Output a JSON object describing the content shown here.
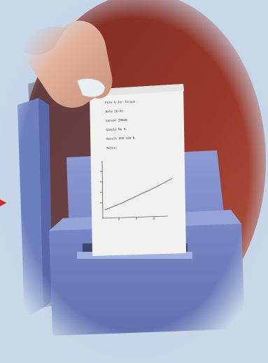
{
  "scene": {
    "subject": "printer-receipt-with-graph",
    "colors": {
      "background": "#c9d9ea",
      "wall_red": "#8a2e24",
      "printer_blue": "#7f8ec6",
      "paper": "#f0f1ef",
      "arrow": "#d6242b"
    }
  },
  "receipt": {
    "lines": [
      "Pole & Jar Torque",
      "Date   26-01-",
      "Sensor  IM000-",
      "Sample No   9",
      "Result  000 100 N",
      "Notes:  ",
      ""
    ]
  },
  "receipt_chart": {
    "type": "line",
    "xlabel": "",
    "ylabel": ""
  }
}
